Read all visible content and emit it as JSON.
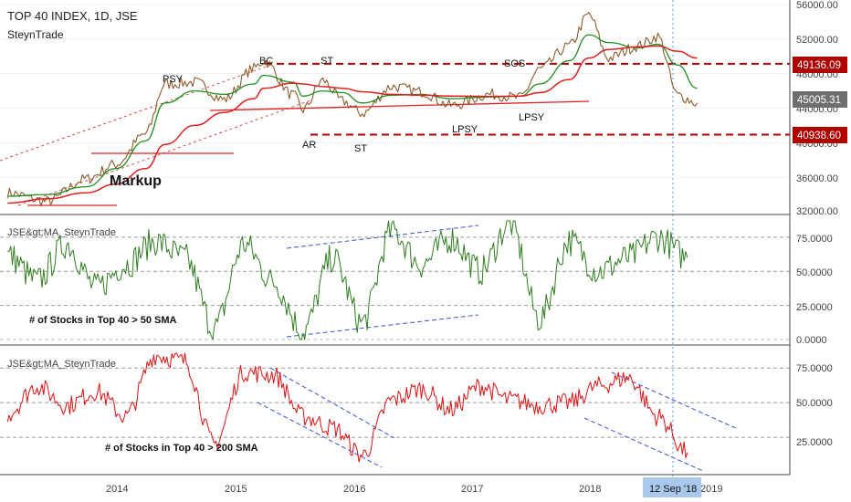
{
  "header": {
    "title": "TOP 40 INDEX, 1D, JSE",
    "author": "SteynTrade"
  },
  "colors": {
    "price_candle": "#8d5a2b",
    "ma_fast": "#1f8f1f",
    "ma_slow": "#e02020",
    "breadth50": "#2e7d1e",
    "breadth200": "#e01010",
    "resistance": "#b00000",
    "channel": "#3a4fd8",
    "crosshair": "#5b9bd5",
    "price_badge": "#6e6e6e",
    "date_badge": "#a9c8ec"
  },
  "chart_data": [
    {
      "type": "line",
      "title": "TOP 40 INDEX, 1D, JSE",
      "subtitle": "SteynTrade",
      "x": [
        "2013-02",
        "2013-06",
        "2013-10",
        "2014-01",
        "2014-04",
        "2014-06",
        "2014-09",
        "2014-12",
        "2015-03",
        "2015-04",
        "2015-07",
        "2015-08",
        "2015-10",
        "2015-12",
        "2016-02",
        "2016-05",
        "2016-08",
        "2016-11",
        "2017-03",
        "2017-06",
        "2017-08",
        "2017-11",
        "2018-01",
        "2018-03",
        "2018-06",
        "2018-08",
        "2018-10",
        "2018-12"
      ],
      "series": [
        {
          "values": [
            34200,
            33200,
            35800,
            37500,
            41000,
            46800,
            47000,
            45000,
            48600,
            49500,
            45500,
            43800,
            47200,
            44800,
            43400,
            46500,
            45900,
            44300,
            45600,
            45200,
            48500,
            51200,
            54800,
            49800,
            51200,
            52300,
            45500,
            44600
          ]
        },
        {
          "values": [
            33800,
            34000,
            34900,
            37000,
            40200,
            44600,
            46000,
            45600,
            46800,
            47800,
            47000,
            45400,
            46000,
            45800,
            44600,
            45500,
            45600,
            45100,
            45300,
            45400,
            46800,
            49500,
            52500,
            51600,
            51000,
            51400,
            49000,
            46300
          ]
        },
        {
          "values": [
            33000,
            33500,
            34200,
            35200,
            37000,
            39800,
            42000,
            43500,
            45100,
            46300,
            46900,
            46800,
            46500,
            46300,
            45900,
            45600,
            45500,
            45400,
            45350,
            45400,
            45800,
            47300,
            49800,
            50800,
            51100,
            51200,
            50600,
            49800
          ]
        }
      ],
      "ylim": [
        32000,
        56000
      ],
      "y_ticks": [
        "56000.00",
        "52000.00",
        "48000.00",
        "44000.00",
        "40000.00",
        "36000.00",
        "32000.00"
      ],
      "levels": [
        {
          "label": "49136.09",
          "value": 49136.09
        },
        {
          "label": "40938.60",
          "value": 40938.6
        }
      ],
      "last_price": {
        "label": "45005.31",
        "value": 45005.31
      },
      "annotations": [
        "PSY",
        "BC",
        "ST",
        "SOS",
        "AR",
        "ST",
        "LPSY",
        "LPSY",
        "Markup"
      ]
    },
    {
      "type": "line",
      "title": "JSE&gt;MA_SteynTrade",
      "annotation": "# of Stocks in Top 40 > 50 SMA",
      "ylim": [
        0,
        87
      ],
      "y_ticks": [
        "75.0000",
        "50.0000",
        "25.0000",
        "0.0000"
      ],
      "x": [
        "2013-02",
        "2013-05",
        "2013-08",
        "2013-11",
        "2014-02",
        "2014-05",
        "2014-08",
        "2014-11",
        "2015-02",
        "2015-05",
        "2015-08",
        "2015-11",
        "2016-02",
        "2016-05",
        "2016-08",
        "2016-11",
        "2017-02",
        "2017-05",
        "2017-08",
        "2017-11",
        "2018-02",
        "2018-05",
        "2018-08",
        "2018-11"
      ],
      "values": [
        62,
        43,
        70,
        38,
        55,
        72,
        60,
        8,
        70,
        42,
        6,
        60,
        12,
        80,
        55,
        74,
        50,
        85,
        15,
        72,
        50,
        60,
        75,
        60
      ]
    },
    {
      "type": "line",
      "title": "JSE&gt;MA_SteynTrade",
      "annotation": "# of Stocks in Top 40 > 200 SMA",
      "ylim": [
        0,
        87
      ],
      "y_ticks": [
        "75.0000",
        "50.0000",
        "25.0000"
      ],
      "x": [
        "2013-02",
        "2013-05",
        "2013-08",
        "2013-11",
        "2014-02",
        "2014-05",
        "2014-08",
        "2014-11",
        "2015-02",
        "2015-05",
        "2015-08",
        "2015-11",
        "2016-02",
        "2016-05",
        "2016-08",
        "2016-11",
        "2017-02",
        "2017-05",
        "2017-08",
        "2017-11",
        "2018-02",
        "2018-05",
        "2018-08",
        "2018-11"
      ],
      "values": [
        42,
        62,
        48,
        58,
        40,
        84,
        80,
        20,
        72,
        70,
        40,
        32,
        12,
        52,
        60,
        45,
        62,
        52,
        48,
        50,
        62,
        68,
        40,
        14
      ]
    }
  ],
  "x_axis": {
    "ticks": [
      "2014",
      "2015",
      "2016",
      "2017",
      "2018",
      "2019"
    ],
    "crosshair_label": "12 Sep '18"
  }
}
